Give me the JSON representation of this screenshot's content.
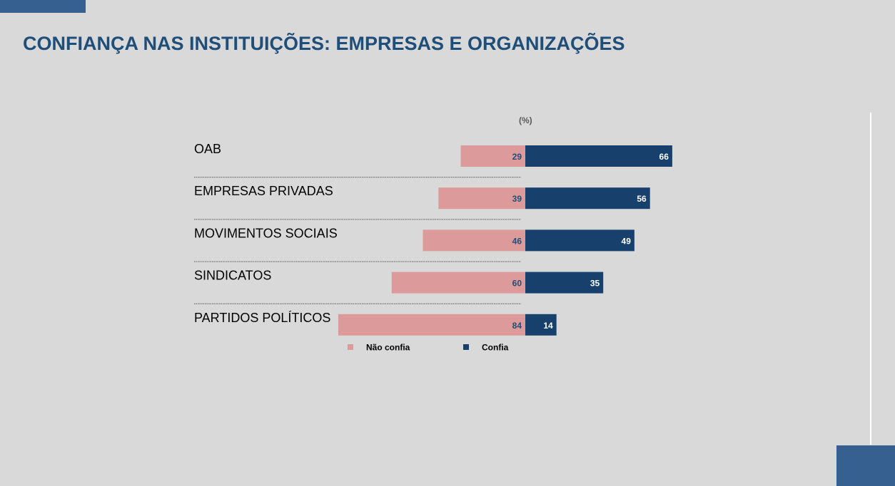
{
  "title": "CONFIANÇA NAS INSTITUIÇÕES: EMPRESAS E ORGANIZAÇÕES",
  "unit_label": "(%)",
  "colors": {
    "nao_confia": "#dd9a9a",
    "confia": "#17406d",
    "title": "#1f4e79",
    "accent": "#35608f"
  },
  "chart_data": {
    "type": "bar",
    "orientation": "horizontal-diverging",
    "title": "CONFIANÇA NAS INSTITUIÇÕES: EMPRESAS E ORGANIZAÇÕES",
    "unit": "(%)",
    "categories": [
      "OAB",
      "EMPRESAS PRIVADAS",
      "MOVIMENTOS SOCIAIS",
      "SINDICATOS",
      "PARTIDOS POLÍTICOS"
    ],
    "series": [
      {
        "name": "Não confia",
        "values": [
          29,
          39,
          46,
          60,
          84
        ]
      },
      {
        "name": "Confia",
        "values": [
          66,
          56,
          49,
          35,
          14
        ]
      }
    ],
    "legend_position": "bottom",
    "grid": false
  }
}
